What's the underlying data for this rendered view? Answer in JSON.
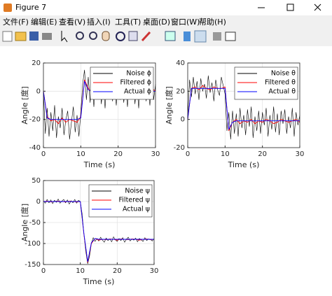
{
  "window": {
    "title": "Figure 7",
    "menu": [
      "文件(F)",
      "编辑(E)",
      "查看(V)",
      "插入(I)",
      "工具(T)",
      "桌面(D)",
      "窗口(W)",
      "帮助(H)"
    ]
  },
  "chart_data": [
    {
      "type": "line",
      "xlabel": "Time (s)",
      "ylabel": "Angle [度]",
      "xlim": [
        0,
        30
      ],
      "xticks": [
        0,
        10,
        20,
        30
      ],
      "ylim": [
        -40,
        20
      ],
      "yticks": [
        -40,
        -20,
        0,
        20
      ],
      "grid": true,
      "legend": "top-right",
      "series": [
        {
          "name": "Noise ϕ",
          "color": "#000000",
          "x": [
            0,
            0.5,
            1,
            1.5,
            2,
            2.5,
            3,
            3.5,
            4,
            4.5,
            5,
            5.5,
            6,
            6.5,
            7,
            7.5,
            8,
            8.5,
            9,
            9.5,
            10,
            10.5,
            11,
            11.5,
            12,
            12.5,
            13,
            13.5,
            14,
            14.5,
            15,
            15.5,
            16,
            16.5,
            17,
            17.5,
            18,
            18.5,
            19,
            19.5,
            20,
            20.5,
            21,
            21.5,
            22,
            22.5,
            23,
            23.5,
            24,
            24.5,
            25,
            25.5,
            26,
            26.5,
            27,
            27.5,
            28,
            28.5,
            29,
            29.5,
            30
          ],
          "values": [
            0,
            -30,
            -12,
            -32,
            -15,
            -28,
            -10,
            -33,
            -18,
            -26,
            -12,
            -31,
            -20,
            -14,
            -34,
            -22,
            -11,
            -29,
            -17,
            -32,
            -15,
            5,
            15,
            -6,
            10,
            -8,
            9,
            -11,
            7,
            -5,
            11,
            -9,
            6,
            -12,
            8,
            -4,
            10,
            -7,
            5,
            -10,
            9,
            -6,
            12,
            -8,
            4,
            -11,
            7,
            -3,
            10,
            -9,
            6,
            -12,
            8,
            -5,
            11,
            -7,
            3,
            -10,
            9,
            -6,
            5
          ]
        },
        {
          "name": "Filtered ϕ",
          "color": "#ff0000",
          "x": [
            0,
            1,
            2,
            3,
            4,
            5,
            6,
            7,
            8,
            9,
            10,
            11,
            12,
            13,
            14,
            15,
            16,
            17,
            18,
            19,
            20,
            21,
            22,
            23,
            24,
            25,
            26,
            27,
            28,
            29,
            30
          ],
          "values": [
            0,
            -18,
            -21,
            -20,
            -23,
            -19,
            -22,
            -20,
            -21,
            -22,
            -18,
            8,
            2,
            -1,
            1,
            0,
            -2,
            1,
            0,
            -1,
            2,
            0,
            -1,
            1,
            -2,
            0,
            1,
            -1,
            0,
            2,
            0
          ]
        },
        {
          "name": "Actual ϕ",
          "color": "#0000ff",
          "x": [
            0,
            1,
            2,
            3,
            4,
            5,
            6,
            7,
            8,
            9,
            10,
            11,
            12,
            13,
            14,
            15,
            16,
            17,
            18,
            19,
            20,
            21,
            22,
            23,
            24,
            25,
            26,
            27,
            28,
            29,
            30
          ],
          "values": [
            0,
            -19,
            -20,
            -20,
            -20,
            -20,
            -20,
            -20,
            -20,
            -20,
            -19,
            7,
            1,
            0,
            0,
            0,
            0,
            0,
            0,
            0,
            0,
            0,
            0,
            0,
            0,
            0,
            0,
            0,
            0,
            0,
            0
          ]
        }
      ]
    },
    {
      "type": "line",
      "xlabel": "Time (s)",
      "ylabel": "Angle [度]",
      "xlim": [
        0,
        30
      ],
      "xticks": [
        0,
        10,
        20,
        30
      ],
      "ylim": [
        -20,
        40
      ],
      "yticks": [
        -20,
        0,
        20,
        40
      ],
      "grid": true,
      "legend": "top-right",
      "series": [
        {
          "name": "Noise θ",
          "color": "#000000",
          "x": [
            0,
            0.5,
            1,
            1.5,
            2,
            2.5,
            3,
            3.5,
            4,
            4.5,
            5,
            5.5,
            6,
            6.5,
            7,
            7.5,
            8,
            8.5,
            9,
            9.5,
            10,
            10.5,
            11,
            11.5,
            12,
            12.5,
            13,
            13.5,
            14,
            14.5,
            15,
            15.5,
            16,
            16.5,
            17,
            17.5,
            18,
            18.5,
            19,
            19.5,
            20,
            20.5,
            21,
            21.5,
            22,
            22.5,
            23,
            23.5,
            24,
            24.5,
            25,
            25.5,
            26,
            26.5,
            27,
            27.5,
            28,
            28.5,
            29,
            29.5,
            30
          ],
          "values": [
            0,
            28,
            16,
            30,
            18,
            27,
            14,
            29,
            20,
            25,
            15,
            31,
            19,
            26,
            13,
            28,
            21,
            17,
            30,
            24,
            18,
            -8,
            5,
            -14,
            6,
            -10,
            4,
            -12,
            8,
            -6,
            3,
            -11,
            7,
            -5,
            9,
            -13,
            2,
            -8,
            6,
            -10,
            5,
            -4,
            8,
            -12,
            3,
            -7,
            9,
            -9,
            4,
            -11,
            6,
            -3,
            7,
            -10,
            2,
            -6,
            8,
            -12,
            5,
            -4,
            3
          ]
        },
        {
          "name": "Filtered θ",
          "color": "#ff0000",
          "x": [
            0,
            1,
            2,
            3,
            4,
            5,
            6,
            7,
            8,
            9,
            10,
            11,
            12,
            13,
            14,
            15,
            16,
            17,
            18,
            19,
            20,
            21,
            22,
            23,
            24,
            25,
            26,
            27,
            28,
            29,
            30
          ],
          "values": [
            0,
            22,
            23,
            21,
            24,
            22,
            21,
            23,
            22,
            22,
            23,
            -8,
            -2,
            0,
            -3,
            -1,
            -2,
            0,
            -3,
            -1,
            -2,
            0,
            -1,
            -3,
            -2,
            0,
            -1,
            -2,
            -1,
            0,
            -2
          ]
        },
        {
          "name": "Actual θ",
          "color": "#0000ff",
          "x": [
            0,
            1,
            2,
            3,
            4,
            5,
            6,
            7,
            8,
            9,
            10,
            11,
            12,
            13,
            14,
            15,
            16,
            17,
            18,
            19,
            20,
            21,
            22,
            23,
            24,
            25,
            26,
            27,
            28,
            29,
            30
          ],
          "values": [
            0,
            22,
            22,
            22,
            22,
            22,
            22,
            22,
            22,
            22,
            22,
            -7,
            -2,
            -1,
            -1,
            -1,
            -1,
            -1,
            -1,
            -1,
            -1,
            -1,
            -1,
            -1,
            -1,
            -1,
            -1,
            -1,
            -1,
            -1,
            -1
          ]
        }
      ]
    },
    {
      "type": "line",
      "xlabel": "Time (s)",
      "ylabel": "Angle [度]",
      "xlim": [
        0,
        30
      ],
      "xticks": [
        0,
        10,
        20,
        30
      ],
      "ylim": [
        -150,
        50
      ],
      "yticks": [
        -150,
        -100,
        -50,
        0,
        50
      ],
      "grid": true,
      "legend": "top-right",
      "series": [
        {
          "name": "Noise ψ",
          "color": "#000000",
          "x": [
            0,
            0.5,
            1,
            1.5,
            2,
            2.5,
            3,
            3.5,
            4,
            4.5,
            5,
            5.5,
            6,
            6.5,
            7,
            7.5,
            8,
            8.5,
            9,
            9.5,
            10,
            10.5,
            11,
            11.5,
            12,
            12.5,
            13,
            13.5,
            14,
            14.5,
            15,
            15.5,
            16,
            16.5,
            17,
            17.5,
            18,
            18.5,
            19,
            19.5,
            20,
            20.5,
            21,
            21.5,
            22,
            22.5,
            23,
            23.5,
            24,
            24.5,
            25,
            25.5,
            26,
            26.5,
            27,
            27.5,
            28,
            28.5,
            29,
            29.5,
            30
          ],
          "values": [
            2,
            -4,
            5,
            -3,
            4,
            -5,
            3,
            -2,
            6,
            -4,
            1,
            5,
            -3,
            4,
            -6,
            2,
            -3,
            5,
            -4,
            3,
            0,
            -30,
            -80,
            -120,
            -148,
            -130,
            -100,
            -86,
            -95,
            -88,
            -94,
            -85,
            -92,
            -97,
            -87,
            -93,
            -89,
            -96,
            -84,
            -91,
            -95,
            -88,
            -93,
            -86,
            -97,
            -90,
            -85,
            -94,
            -89,
            -92,
            -87,
            -96,
            -88,
            -91,
            -95,
            -86,
            -93,
            -89,
            -90,
            -94,
            -88
          ]
        },
        {
          "name": "Filtered ψ",
          "color": "#ff0000",
          "x": [
            0,
            1,
            2,
            3,
            4,
            5,
            6,
            7,
            8,
            9,
            10,
            11,
            12,
            13,
            14,
            15,
            16,
            17,
            18,
            19,
            20,
            21,
            22,
            23,
            24,
            25,
            26,
            27,
            28,
            29,
            30
          ],
          "values": [
            0,
            1,
            -1,
            0,
            1,
            0,
            -1,
            1,
            0,
            -1,
            0,
            -80,
            -145,
            -100,
            -88,
            -92,
            -90,
            -91,
            -89,
            -90,
            -92,
            -89,
            -90,
            -91,
            -89,
            -90,
            -92,
            -90,
            -89,
            -91,
            -90
          ]
        },
        {
          "name": "Actual ψ",
          "color": "#0000ff",
          "x": [
            0,
            1,
            2,
            3,
            4,
            5,
            6,
            7,
            8,
            9,
            10,
            11,
            12,
            13,
            14,
            15,
            16,
            17,
            18,
            19,
            20,
            21,
            22,
            23,
            24,
            25,
            26,
            27,
            28,
            29,
            30
          ],
          "values": [
            0,
            0,
            0,
            0,
            0,
            0,
            0,
            0,
            0,
            0,
            0,
            -78,
            -143,
            -98,
            -88,
            -90,
            -90,
            -90,
            -90,
            -90,
            -90,
            -90,
            -90,
            -90,
            -90,
            -90,
            -90,
            -90,
            -90,
            -90,
            -90
          ]
        }
      ]
    }
  ]
}
